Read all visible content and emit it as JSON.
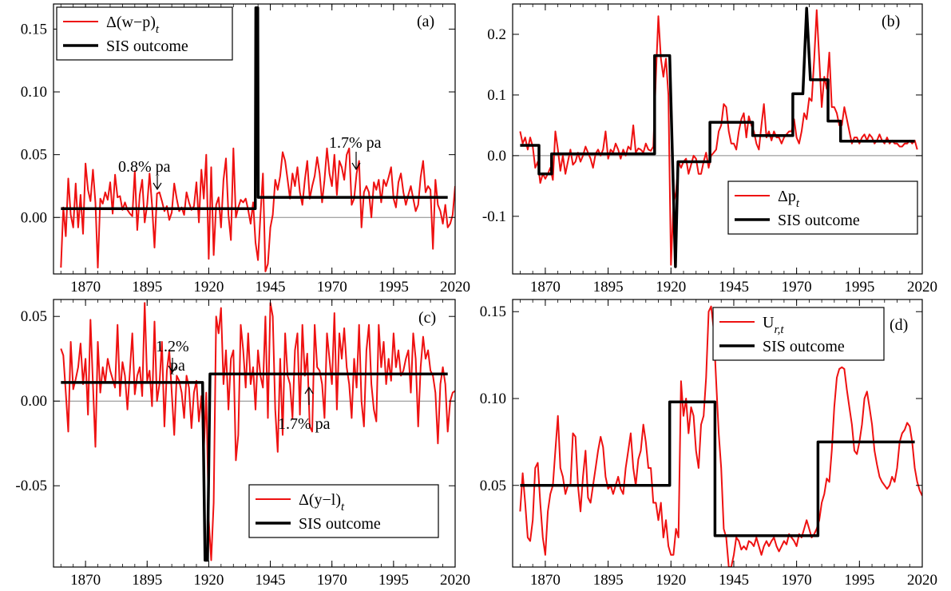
{
  "figure": {
    "panels": 4,
    "layout": "2x2"
  },
  "chart_data": [
    {
      "panel": "(a)",
      "type": "line",
      "xlim": [
        1857,
        2020
      ],
      "ylim": [
        -0.045,
        0.17
      ],
      "xticks": [
        1870,
        1895,
        1920,
        1945,
        1970,
        1995,
        2020
      ],
      "xtick_labels": [
        "1870",
        "1895",
        "1920",
        "1945",
        "1970",
        "1995",
        "2020"
      ],
      "yticks": [
        0.0,
        0.05,
        0.1,
        0.15
      ],
      "ytick_labels": [
        "0.00",
        "0.05",
        "0.10",
        "0.15"
      ],
      "zero_line": true,
      "legend_position": "top-left",
      "legend_box": true,
      "series": [
        {
          "name": "Δ(w−p)",
          "sub": "t",
          "color": "#ee1111",
          "width": 2,
          "step": 1,
          "x_start": 1860,
          "values": [
            -0.04,
            0.008,
            -0.015,
            0.031,
            0.002,
            -0.008,
            0.027,
            -0.008,
            0.018,
            -0.013,
            0.043,
            0.022,
            0.013,
            0.038,
            0.012,
            -0.04,
            0.015,
            0.011,
            0.02,
            0.014,
            0.028,
            0.003,
            0.034,
            0.016,
            0.017,
            0.006,
            0.012,
            0.006,
            0.003,
            0.001,
            0.037,
            -0.01,
            0.018,
            0.03,
            -0.004,
            0.01,
            0.035,
            0.01,
            -0.024,
            0.019,
            0.02,
            0.013,
            0.005,
            0.009,
            -0.002,
            0.004,
            0.027,
            0.015,
            0.005,
            0.008,
            0.002,
            0.02,
            0.012,
            0.006,
            0.009,
            0.028,
            -0.004,
            0.038,
            0.015,
            0.05,
            -0.033,
            0.04,
            -0.03,
            0.01,
            0.016,
            -0.008,
            0.03,
            0.047,
            0.002,
            -0.018,
            0.055,
            0.0,
            0.008,
            0.014,
            0.012,
            0.015,
            0.006,
            -0.005,
            0.012,
            -0.02,
            -0.034,
            0.002,
            0.035,
            -0.043,
            -0.037,
            -0.008,
            0.002,
            0.03,
            0.022,
            0.033,
            0.052,
            0.045,
            0.03,
            0.015,
            0.035,
            0.025,
            0.04,
            0.02,
            0.01,
            0.03,
            0.045,
            0.015,
            0.025,
            0.033,
            0.048,
            0.035,
            0.012,
            0.03,
            0.055,
            0.035,
            0.025,
            0.05,
            0.018,
            0.045,
            0.04,
            0.03,
            0.05,
            0.055,
            0.01,
            0.015,
            0.035,
            0.045,
            -0.008,
            0.02,
            0.025,
            0.02,
            0.0,
            0.028,
            0.022,
            0.03,
            0.012,
            0.03,
            0.025,
            0.032,
            0.04,
            0.015,
            0.008,
            0.028,
            0.035,
            0.02,
            0.01,
            0.018,
            0.025,
            0.015,
            0.005,
            0.01,
            0.032,
            0.045,
            0.02,
            0.025,
            0.022,
            -0.025,
            0.03,
            0.01,
            0.005,
            -0.005,
            0.01,
            -0.008,
            -0.005,
            0.002,
            0.025
          ]
        },
        {
          "name": "SIS outcome",
          "color": "#000000",
          "width": 3.5,
          "points": [
            [
              1860,
              0.007
            ],
            [
              1938.9,
              0.007
            ],
            [
              1939.1,
              0.167
            ],
            [
              1939.9,
              0.167
            ],
            [
              1940.1,
              0.016
            ],
            [
              2017,
              0.016
            ]
          ]
        }
      ],
      "annotations": [
        {
          "text": "0.8% pa",
          "arrow": "down",
          "x": 1898,
          "y": 0.007
        },
        {
          "text": "1.7% pa",
          "arrow": "down",
          "x": 1981,
          "y": 0.016
        }
      ]
    },
    {
      "panel": "(b)",
      "type": "line",
      "xlim": [
        1857,
        2020
      ],
      "ylim": [
        -0.195,
        0.25
      ],
      "xticks": [
        1870,
        1895,
        1920,
        1945,
        1970,
        1995,
        2020
      ],
      "xtick_labels": [
        "1870",
        "1895",
        "1920",
        "1945",
        "1970",
        "1995",
        "2020"
      ],
      "yticks": [
        -0.1,
        0.0,
        0.1,
        0.2
      ],
      "ytick_labels": [
        "-0.1",
        "0.0",
        "0.1",
        "0.2"
      ],
      "zero_line": true,
      "legend_position": "bottom-right",
      "legend_box": true,
      "series": [
        {
          "name": "Δp",
          "sub": "t",
          "color": "#ee1111",
          "width": 2,
          "step": 1,
          "x_start": 1860,
          "values": [
            0.04,
            0.02,
            0.03,
            0.01,
            0.03,
            0.015,
            -0.02,
            -0.01,
            -0.045,
            -0.03,
            -0.038,
            -0.03,
            -0.02,
            -0.04,
            0.04,
            0.01,
            -0.025,
            0.0,
            -0.03,
            -0.01,
            0.01,
            -0.015,
            -0.01,
            0.005,
            -0.01,
            0.0,
            0.015,
            0.005,
            -0.005,
            -0.02,
            0.003,
            0.01,
            0.0,
            0.01,
            0.04,
            -0.005,
            0.01,
            0.005,
            0.02,
            0.01,
            -0.005,
            0.01,
            0.0,
            0.015,
            0.01,
            0.05,
            0.005,
            0.012,
            0.01,
            0.005,
            0.02,
            0.01,
            0.008,
            0.015,
            0.13,
            0.23,
            0.16,
            0.13,
            0.16,
            0.1,
            -0.18,
            -0.08,
            -0.06,
            -0.01,
            -0.02,
            -0.01,
            -0.005,
            -0.03,
            -0.015,
            0.0,
            -0.005,
            -0.03,
            -0.03,
            -0.01,
            0.005,
            -0.02,
            0.0,
            0.005,
            0.01,
            0.04,
            0.05,
            0.085,
            0.08,
            0.04,
            0.02,
            0.02,
            0.01,
            0.04,
            0.06,
            0.07,
            0.03,
            0.065,
            0.05,
            0.04,
            0.02,
            0.01,
            0.05,
            0.085,
            0.03,
            0.04,
            0.025,
            0.04,
            0.03,
            0.03,
            0.02,
            0.03,
            0.035,
            0.04,
            0.04,
            0.06,
            0.03,
            0.02,
            0.04,
            0.07,
            0.06,
            0.095,
            0.09,
            0.16,
            0.24,
            0.16,
            0.08,
            0.13,
            0.11,
            0.17,
            0.08,
            0.08,
            0.07,
            0.05,
            0.05,
            0.08,
            0.06,
            0.04,
            0.02,
            0.03,
            0.03,
            0.02,
            0.03,
            0.035,
            0.025,
            0.035,
            0.03,
            0.02,
            0.025,
            0.035,
            0.025,
            0.02,
            0.03,
            0.02,
            0.025,
            0.02,
            0.02,
            0.015,
            0.015,
            0.02,
            0.02,
            0.025,
            0.02,
            0.025,
            0.01
          ]
        },
        {
          "name": "SIS outcome",
          "color": "#000000",
          "width": 3.5,
          "points": [
            [
              1860,
              0.017
            ],
            [
              1867.5,
              0.017
            ],
            [
              1867.5,
              -0.03
            ],
            [
              1872.5,
              -0.03
            ],
            [
              1872.5,
              0.003
            ],
            [
              1913.5,
              0.003
            ],
            [
              1913.5,
              0.165
            ],
            [
              1919.5,
              0.165
            ],
            [
              1921.8,
              -0.183
            ],
            [
              1922.8,
              -0.01
            ],
            [
              1935.5,
              -0.01
            ],
            [
              1935.5,
              0.055
            ],
            [
              1952.5,
              0.055
            ],
            [
              1952.5,
              0.033
            ],
            [
              1968.5,
              0.033
            ],
            [
              1968.5,
              0.102
            ],
            [
              1972.5,
              0.102
            ],
            [
              1974,
              0.243
            ],
            [
              1975.5,
              0.125
            ],
            [
              1982.5,
              0.125
            ],
            [
              1982.5,
              0.057
            ],
            [
              1987.5,
              0.057
            ],
            [
              1987.5,
              0.024
            ],
            [
              2017,
              0.024
            ]
          ]
        }
      ]
    },
    {
      "panel": "(c)",
      "type": "line",
      "xlim": [
        1857,
        2020
      ],
      "ylim": [
        -0.098,
        0.06
      ],
      "xticks": [
        1870,
        1895,
        1920,
        1945,
        1970,
        1995,
        2020
      ],
      "xtick_labels": [
        "1870",
        "1895",
        "1920",
        "1945",
        "1970",
        "1995",
        "2020"
      ],
      "yticks": [
        -0.05,
        0.0,
        0.05
      ],
      "ytick_labels": [
        "-0.05",
        "0.00",
        "0.05"
      ],
      "zero_line": true,
      "legend_position": "bottom-right",
      "legend_box": true,
      "series": [
        {
          "name": "Δ(y−l)",
          "sub": "t",
          "color": "#ee1111",
          "width": 2,
          "step": 1,
          "x_start": 1860,
          "values": [
            0.031,
            0.027,
            0.005,
            -0.018,
            0.035,
            0.007,
            0.013,
            0.02,
            0.034,
            0.01,
            0.025,
            -0.008,
            0.048,
            0.01,
            -0.027,
            0.035,
            0.005,
            0.02,
            0.011,
            0.025,
            0.018,
            0.013,
            0.008,
            0.045,
            0.003,
            0.023,
            0.015,
            -0.005,
            0.018,
            0.04,
            0.004,
            0.015,
            0.02,
            0.003,
            0.058,
            0.012,
            0.018,
            -0.003,
            0.047,
            0.0,
            0.01,
            0.035,
            -0.015,
            0.018,
            0.03,
            0.005,
            -0.02,
            0.015,
            0.012,
            0.005,
            -0.01,
            0.015,
            0.008,
            -0.016,
            0.005,
            0.012,
            -0.012,
            0.003,
            -0.03,
            0.005,
            -0.07,
            -0.094,
            -0.06,
            0.05,
            0.04,
            0.055,
            0.01,
            0.03,
            -0.005,
            0.025,
            0.03,
            -0.035,
            -0.02,
            0.045,
            0.03,
            0.008,
            0.04,
            0.01,
            0.02,
            -0.005,
            0.03,
            0.015,
            0.008,
            0.05,
            -0.01,
            0.058,
            0.05,
            -0.005,
            -0.03,
            0.025,
            -0.02,
            0.04,
            0.015,
            0.01,
            -0.01,
            0.03,
            0.04,
            -0.008,
            0.045,
            0.015,
            0.028,
            -0.015,
            -0.018,
            0.045,
            0.02,
            0.018,
            0.01,
            -0.01,
            0.04,
            0.025,
            0.01,
            0.052,
            -0.005,
            0.04,
            0.025,
            0.043,
            0.02,
            0.01,
            -0.01,
            0.025,
            0.008,
            0.045,
            0.0,
            -0.015,
            0.03,
            0.045,
            0.01,
            -0.005,
            -0.012,
            0.045,
            0.02,
            0.035,
            0.01,
            0.025,
            0.012,
            0.04,
            0.02,
            0.03,
            0.015,
            0.018,
            0.025,
            0.03,
            0.005,
            0.04,
            0.025,
            -0.015,
            0.02,
            0.038,
            0.025,
            0.03,
            0.018,
            0.015,
            0.005,
            -0.025,
            0.01,
            0.02,
            0.01,
            -0.018,
            0.0,
            0.005,
            0.006,
            0.006
          ]
        },
        {
          "name": "SIS outcome",
          "color": "#000000",
          "width": 3.5,
          "points": [
            [
              1860,
              0.011
            ],
            [
              1917.5,
              0.011
            ],
            [
              1918.5,
              -0.094
            ],
            [
              1919.5,
              -0.094
            ],
            [
              1920.5,
              0.016
            ],
            [
              2017,
              0.016
            ]
          ]
        }
      ],
      "annotations": [
        {
          "text": "1.2%",
          "line2": "pa",
          "arrow": "down",
          "x": 1903,
          "y": 0.011
        },
        {
          "text": "1.7% pa",
          "arrow": "up",
          "x": 1962,
          "y": 0.016
        }
      ]
    },
    {
      "panel": "(d)",
      "type": "line",
      "xlim": [
        1857,
        2020
      ],
      "ylim": [
        0.003,
        0.157
      ],
      "xticks": [
        1870,
        1895,
        1920,
        1945,
        1970,
        1995,
        2020
      ],
      "xtick_labels": [
        "1870",
        "1895",
        "1920",
        "1945",
        "1970",
        "1995",
        "2020"
      ],
      "yticks": [
        0.05,
        0.1,
        0.15
      ],
      "ytick_labels": [
        "0.05",
        "0.10",
        "0.15"
      ],
      "zero_line": false,
      "legend_position": "top-right",
      "legend_box": true,
      "series": [
        {
          "name": "U",
          "sub": "r,t",
          "color": "#ee1111",
          "width": 2,
          "step": 1,
          "x_start": 1860,
          "values": [
            0.035,
            0.057,
            0.04,
            0.02,
            0.018,
            0.03,
            0.06,
            0.063,
            0.04,
            0.02,
            0.01,
            0.035,
            0.045,
            0.05,
            0.07,
            0.09,
            0.06,
            0.055,
            0.045,
            0.05,
            0.05,
            0.08,
            0.078,
            0.05,
            0.035,
            0.055,
            0.07,
            0.043,
            0.04,
            0.05,
            0.06,
            0.07,
            0.078,
            0.072,
            0.055,
            0.048,
            0.05,
            0.045,
            0.05,
            0.055,
            0.048,
            0.045,
            0.06,
            0.07,
            0.08,
            0.06,
            0.05,
            0.065,
            0.07,
            0.085,
            0.075,
            0.06,
            0.06,
            0.04,
            0.04,
            0.03,
            0.04,
            0.02,
            0.03,
            0.015,
            0.01,
            0.01,
            0.025,
            0.02,
            0.11,
            0.09,
            0.1,
            0.08,
            0.095,
            0.09,
            0.07,
            0.06,
            0.085,
            0.09,
            0.112,
            0.15,
            0.153,
            0.14,
            0.11,
            0.08,
            0.06,
            0.025,
            0.02,
            0.003,
            0.003,
            0.01,
            0.02,
            0.018,
            0.013,
            0.015,
            0.013,
            0.018,
            0.017,
            0.015,
            0.02,
            0.015,
            0.01,
            0.015,
            0.018,
            0.015,
            0.018,
            0.02,
            0.015,
            0.012,
            0.015,
            0.018,
            0.016,
            0.022,
            0.02,
            0.018,
            0.015,
            0.022,
            0.02,
            0.025,
            0.03,
            0.025,
            0.02,
            0.022,
            0.025,
            0.03,
            0.04,
            0.045,
            0.054,
            0.052,
            0.07,
            0.095,
            0.112,
            0.117,
            0.118,
            0.117,
            0.105,
            0.095,
            0.085,
            0.07,
            0.068,
            0.075,
            0.085,
            0.1,
            0.104,
            0.095,
            0.085,
            0.07,
            0.062,
            0.055,
            0.052,
            0.05,
            0.048,
            0.05,
            0.055,
            0.052,
            0.06,
            0.075,
            0.08,
            0.082,
            0.086,
            0.084,
            0.075,
            0.06,
            0.052,
            0.047,
            0.044
          ]
        },
        {
          "name": "SIS outcome",
          "color": "#000000",
          "width": 3.5,
          "points": [
            [
              1860,
              0.05
            ],
            [
              1919.5,
              0.05
            ],
            [
              1919.5,
              0.098
            ],
            [
              1937.5,
              0.098
            ],
            [
              1937.5,
              0.021
            ],
            [
              1978.5,
              0.021
            ],
            [
              1978.5,
              0.075
            ],
            [
              2017,
              0.075
            ]
          ]
        }
      ]
    }
  ]
}
